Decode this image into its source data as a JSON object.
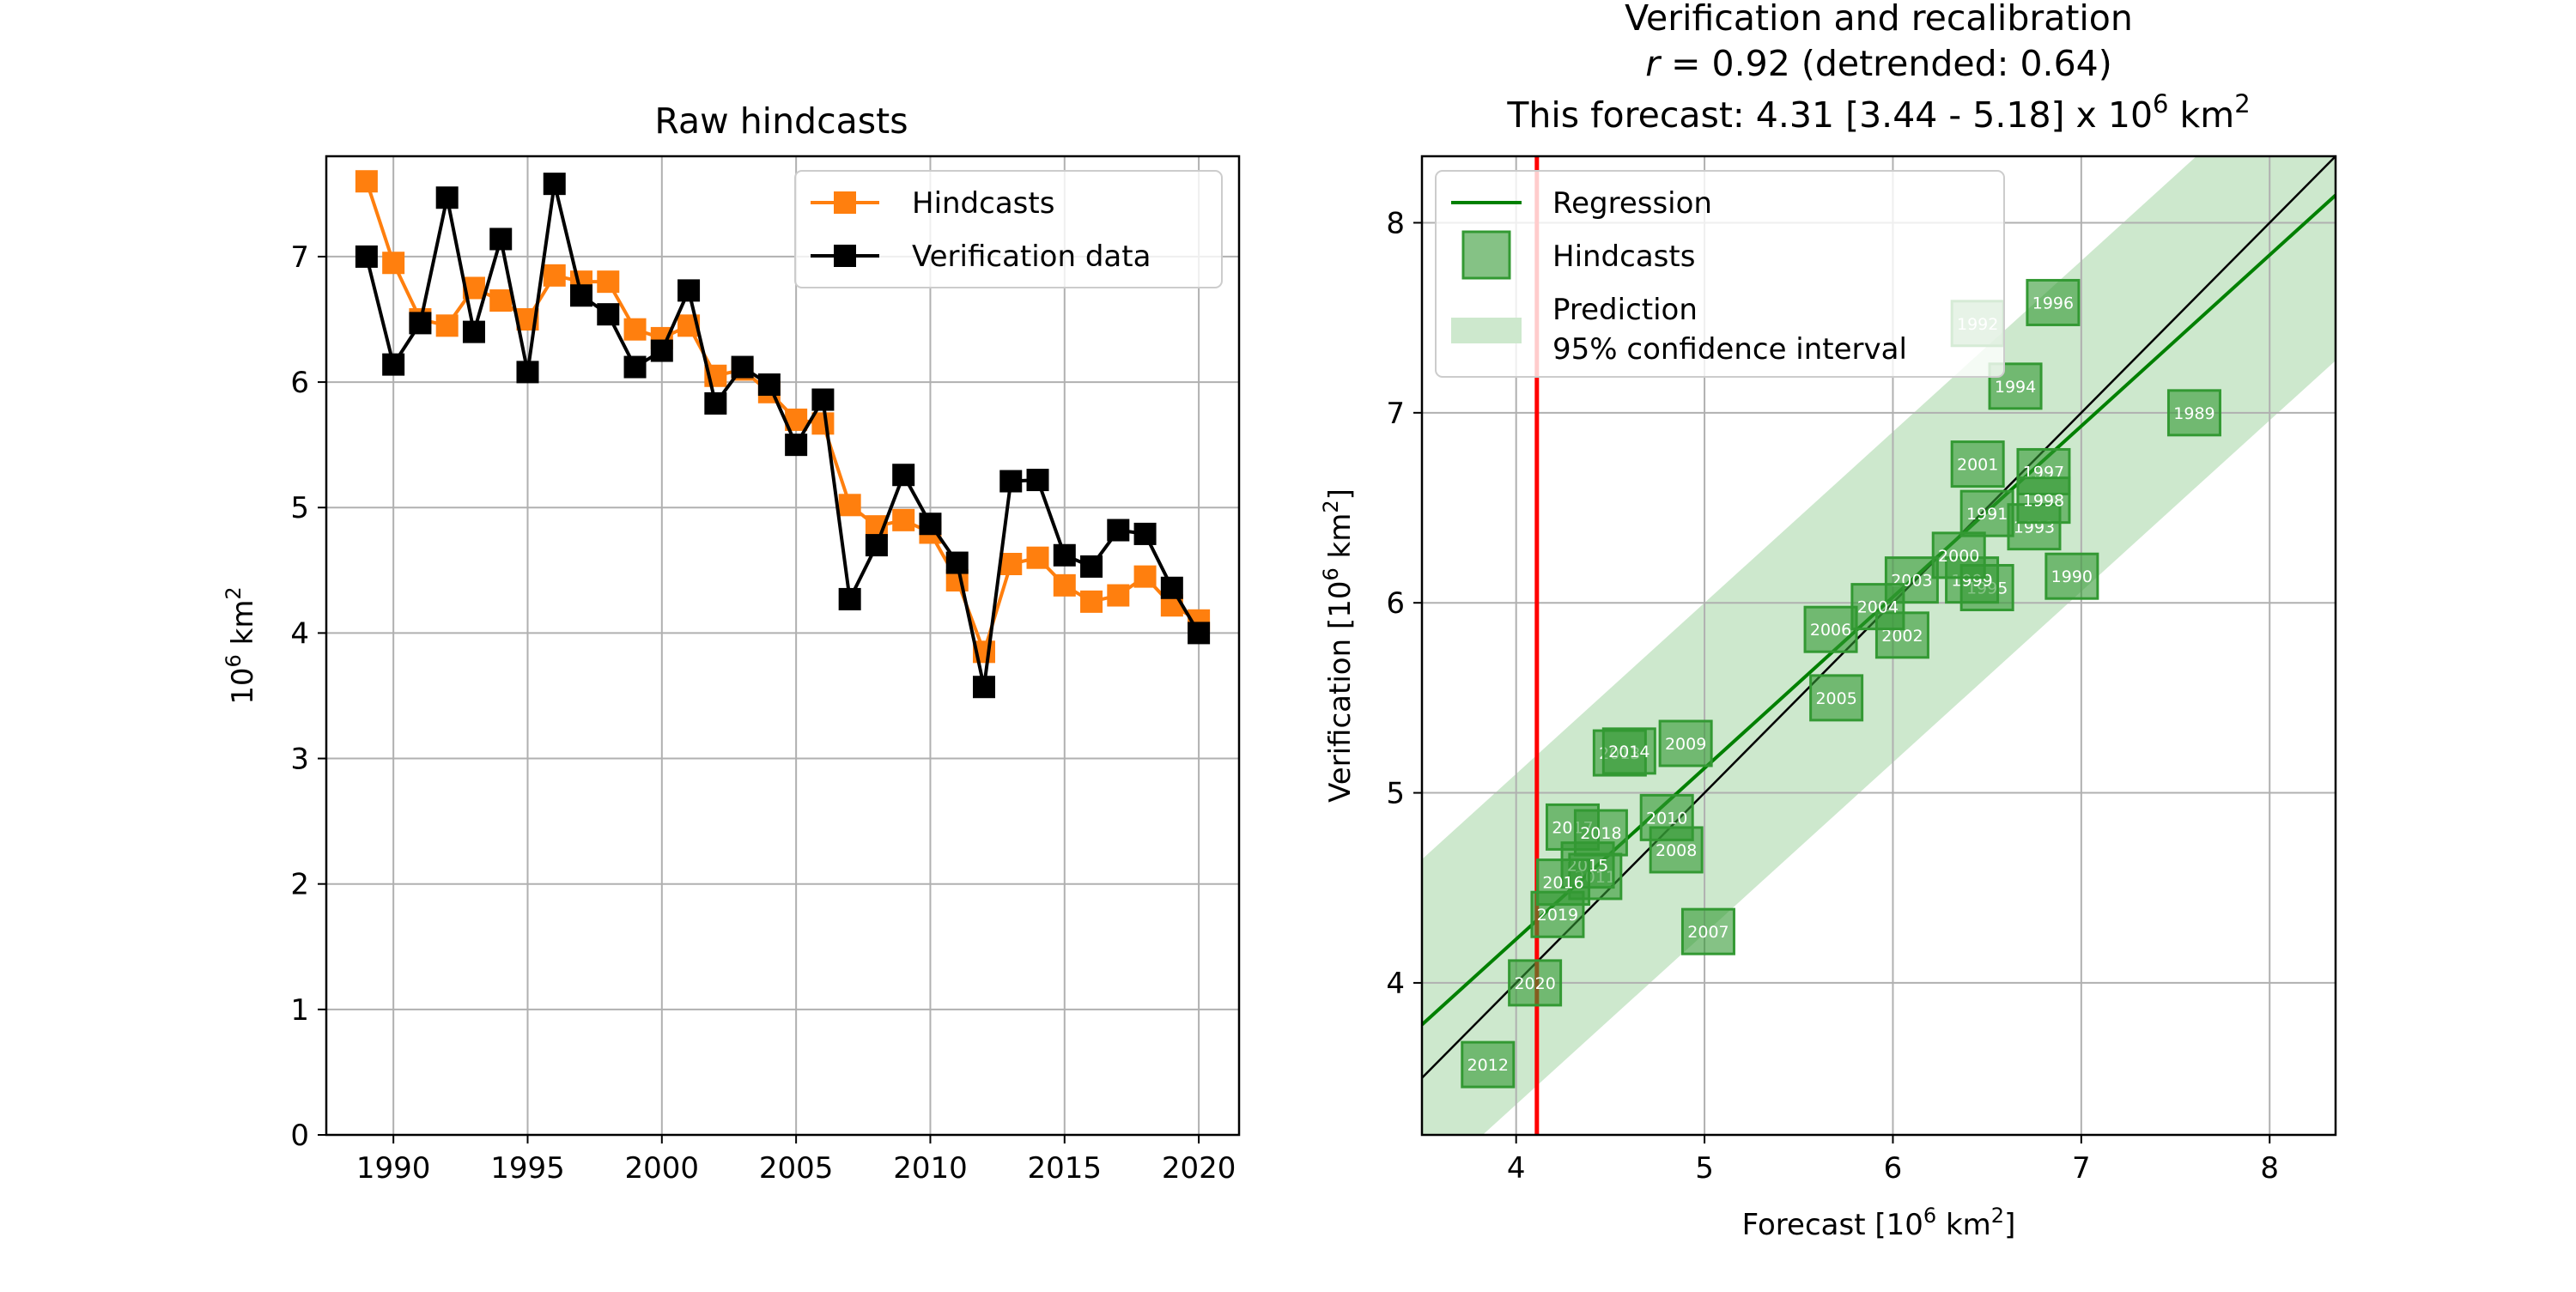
{
  "colors": {
    "hindcast": "#ff7f0e",
    "verification": "#000000",
    "regression": "#008000",
    "scatter_face": "#339933",
    "band": "#cde8cd",
    "current_forecast": "#ff0000",
    "grid": "#b0b0b0"
  },
  "chart_data": [
    {
      "type": "line",
      "title": "Raw hindcasts",
      "xlabel": "",
      "ylabel": "10⁶ km²",
      "xlim": [
        1987.5,
        2021.5
      ],
      "ylim": [
        0,
        7.8
      ],
      "xticks": [
        1990,
        1995,
        2000,
        2005,
        2010,
        2015,
        2020
      ],
      "yticks": [
        0,
        1,
        2,
        3,
        4,
        5,
        6,
        7
      ],
      "grid": true,
      "legend_position": "top-right",
      "legend": [
        "Hindcasts",
        "Verification data"
      ],
      "x": [
        1989,
        1990,
        1991,
        1992,
        1993,
        1994,
        1995,
        1996,
        1997,
        1998,
        1999,
        2000,
        2001,
        2002,
        2003,
        2004,
        2005,
        2006,
        2007,
        2008,
        2009,
        2010,
        2011,
        2012,
        2013,
        2014,
        2015,
        2016,
        2017,
        2018,
        2019,
        2020
      ],
      "series": [
        {
          "name": "Hindcasts",
          "values": [
            7.6,
            6.95,
            6.5,
            6.45,
            6.75,
            6.65,
            6.5,
            6.85,
            6.8,
            6.8,
            6.42,
            6.35,
            6.45,
            6.05,
            6.1,
            5.92,
            5.7,
            5.67,
            5.02,
            4.85,
            4.9,
            4.8,
            4.42,
            3.85,
            4.55,
            4.6,
            4.38,
            4.25,
            4.3,
            4.45,
            4.22,
            4.1
          ]
        },
        {
          "name": "Verification data",
          "values": [
            7.0,
            6.14,
            6.47,
            7.47,
            6.4,
            7.14,
            6.08,
            7.58,
            6.69,
            6.54,
            6.12,
            6.25,
            6.73,
            5.83,
            6.12,
            5.98,
            5.5,
            5.86,
            4.27,
            4.7,
            5.26,
            4.87,
            4.56,
            3.57,
            5.21,
            5.22,
            4.62,
            4.53,
            4.82,
            4.79,
            4.36,
            4.0
          ]
        }
      ]
    },
    {
      "type": "scatter",
      "title": "Verification and recalibration",
      "subtitle_r": "r = 0.92 (detrended: 0.64)",
      "subtitle_r_italic": "r",
      "subtitle_r_rest": " = 0.92 (detrended: 0.64)",
      "subtitle_forecast": "This forecast: 4.31 [3.44 - 5.18] x 10⁶ km²",
      "subtitle_forecast_main": "This forecast: 4.31 [3.44 - 5.18] x 10",
      "subtitle_forecast_unit": "km",
      "xlabel": "Forecast [10⁶ km²]",
      "ylabel": "Verification [10⁶ km²]",
      "xlim": [
        3.5,
        8.35
      ],
      "ylim": [
        3.2,
        8.35
      ],
      "xticks": [
        4,
        5,
        6,
        7,
        8
      ],
      "yticks": [
        4,
        5,
        6,
        7,
        8
      ],
      "grid": true,
      "legend_position": "top-left",
      "legend": {
        "regression": "Regression",
        "hindcasts": "Hindcasts",
        "prediction_line1": "Prediction",
        "prediction_line2": "95% confidence interval"
      },
      "regression": {
        "slope": 0.9,
        "intercept": 0.63
      },
      "interval_half_width": 0.87,
      "identity_line": true,
      "current_forecast_x": 4.11,
      "points": [
        {
          "label": "1989",
          "x": 7.6,
          "y": 7.0
        },
        {
          "label": "1990",
          "x": 6.95,
          "y": 6.14
        },
        {
          "label": "1991",
          "x": 6.5,
          "y": 6.47
        },
        {
          "label": "1992",
          "x": 6.45,
          "y": 7.47
        },
        {
          "label": "1993",
          "x": 6.75,
          "y": 6.4
        },
        {
          "label": "1994",
          "x": 6.65,
          "y": 7.14
        },
        {
          "label": "1995",
          "x": 6.5,
          "y": 6.08
        },
        {
          "label": "1996",
          "x": 6.85,
          "y": 7.58
        },
        {
          "label": "1997",
          "x": 6.8,
          "y": 6.69
        },
        {
          "label": "1998",
          "x": 6.8,
          "y": 6.54
        },
        {
          "label": "1999",
          "x": 6.42,
          "y": 6.12
        },
        {
          "label": "2000",
          "x": 6.35,
          "y": 6.25
        },
        {
          "label": "2001",
          "x": 6.45,
          "y": 6.73
        },
        {
          "label": "2002",
          "x": 6.05,
          "y": 5.83
        },
        {
          "label": "2003",
          "x": 6.1,
          "y": 6.12
        },
        {
          "label": "2004",
          "x": 5.92,
          "y": 5.98
        },
        {
          "label": "2005",
          "x": 5.7,
          "y": 5.5
        },
        {
          "label": "2006",
          "x": 5.67,
          "y": 5.86
        },
        {
          "label": "2007",
          "x": 5.02,
          "y": 4.27
        },
        {
          "label": "2008",
          "x": 4.85,
          "y": 4.7
        },
        {
          "label": "2009",
          "x": 4.9,
          "y": 5.26
        },
        {
          "label": "2010",
          "x": 4.8,
          "y": 4.87
        },
        {
          "label": "2011",
          "x": 4.42,
          "y": 4.56
        },
        {
          "label": "2012",
          "x": 3.85,
          "y": 3.57
        },
        {
          "label": "2013",
          "x": 4.55,
          "y": 5.21
        },
        {
          "label": "2014",
          "x": 4.6,
          "y": 5.22
        },
        {
          "label": "2015",
          "x": 4.38,
          "y": 4.62
        },
        {
          "label": "2016",
          "x": 4.25,
          "y": 4.53
        },
        {
          "label": "2017",
          "x": 4.3,
          "y": 4.82
        },
        {
          "label": "2018",
          "x": 4.45,
          "y": 4.79
        },
        {
          "label": "2019",
          "x": 4.22,
          "y": 4.36
        },
        {
          "label": "2020",
          "x": 4.1,
          "y": 4.0
        }
      ]
    }
  ]
}
